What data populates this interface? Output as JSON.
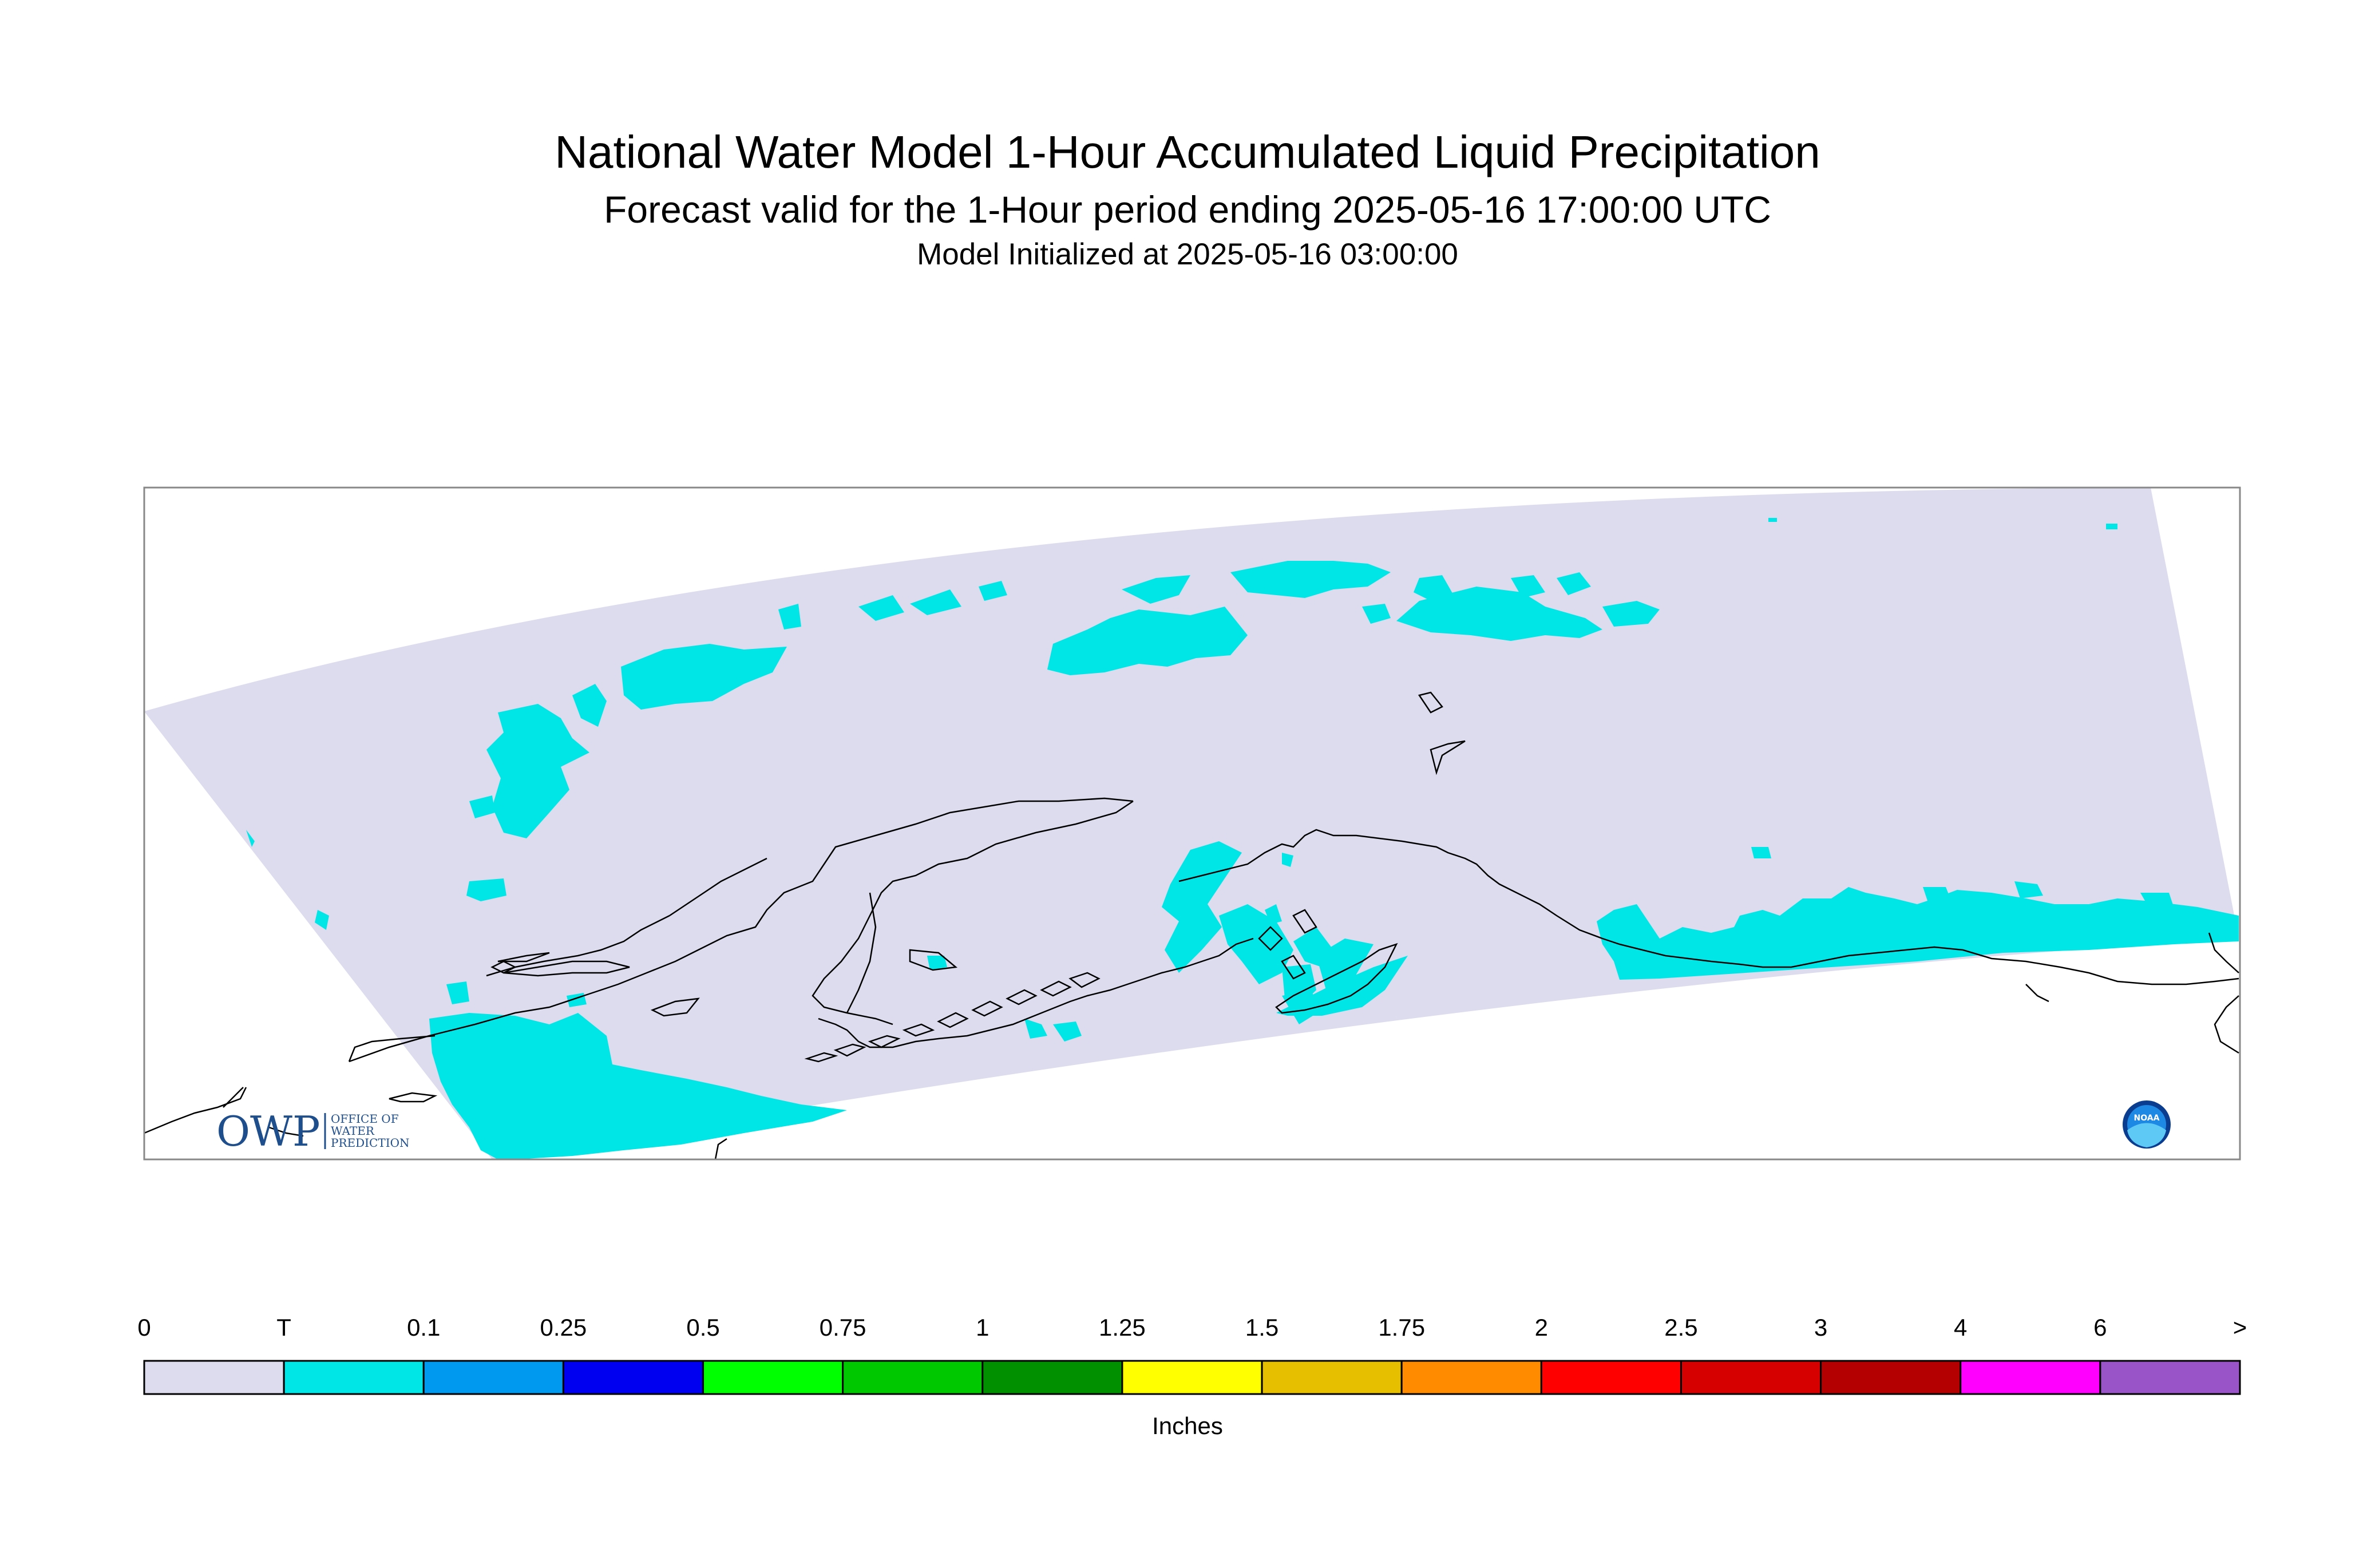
{
  "title": "National Water Model 1-Hour Accumulated Liquid Precipitation",
  "subtitle": "Forecast valid for the 1-Hour period ending 2025-05-16 17:00:00 UTC",
  "init": "Model Initialized at 2025-05-16 03:00:00",
  "logos": {
    "owp": {
      "mark": "OWP",
      "text": [
        "OFFICE OF",
        "WATER",
        "PREDICTION"
      ]
    },
    "noaa": {
      "text": "NOAA"
    }
  },
  "colorbar": {
    "unit_label": "Inches",
    "tick_labels": [
      "0",
      "T",
      "0.1",
      "0.25",
      "0.5",
      "0.75",
      "1",
      "1.25",
      "1.5",
      "1.75",
      "2",
      "2.5",
      "3",
      "4",
      "6",
      ">"
    ],
    "colors": [
      "#dcdcee",
      "#00e6e6",
      "#0099f0",
      "#0000f0",
      "#00ff00",
      "#00c800",
      "#009000",
      "#ffff00",
      "#e6bf00",
      "#ff8c00",
      "#ff0000",
      "#d70000",
      "#b40000",
      "#ff00ff",
      "#9955c8"
    ]
  },
  "map": {
    "domain_color": "#dcdcee",
    "precip_color": "#00e6e6",
    "coastline_color": "#000000"
  }
}
